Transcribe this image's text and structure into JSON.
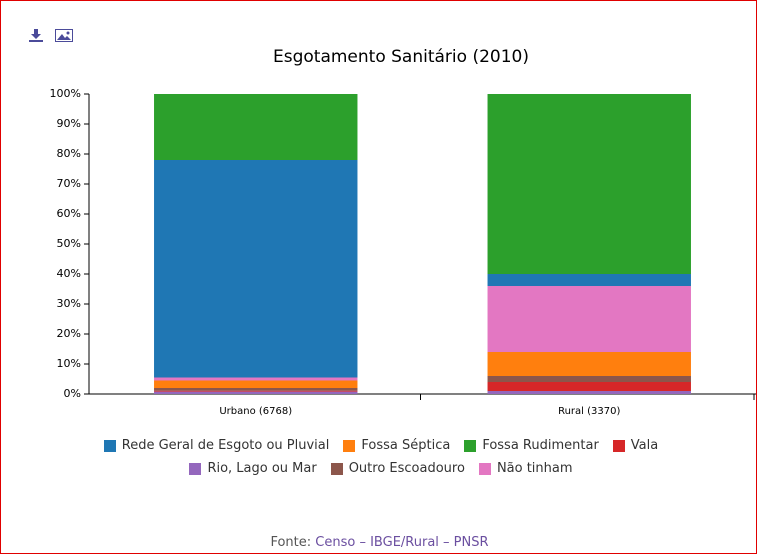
{
  "chart_data": {
    "type": "stacked_bar",
    "title": "Esgotamento Sanitário (2010)",
    "categories": [
      "Urbano (6768)",
      "Rural (3370)"
    ],
    "series": [
      {
        "name": "Rio, Lago ou Mar",
        "color": "#9467bd",
        "values": [
          0.8,
          1
        ]
      },
      {
        "name": "Vala",
        "color": "#d62728",
        "values": [
          0.3,
          3
        ]
      },
      {
        "name": "Outro Escoadouro",
        "color": "#8c564b",
        "values": [
          0.9,
          2
        ]
      },
      {
        "name": "Fossa Séptica",
        "color": "#ff7f0e",
        "values": [
          2.5,
          8
        ]
      },
      {
        "name": "Não tinham",
        "color": "#e377c2",
        "values": [
          1,
          22
        ]
      },
      {
        "name": "Rede Geral de Esgoto ou Pluvial",
        "color": "#1f77b4",
        "values": [
          72.5,
          4
        ]
      },
      {
        "name": "Fossa Rudimentar",
        "color": "#2ca02c",
        "values": [
          22,
          60
        ]
      }
    ],
    "ylim": [
      0,
      100
    ],
    "yticks": [
      {
        "value": 0,
        "label": "0%"
      },
      {
        "value": 10,
        "label": "10%"
      },
      {
        "value": 20,
        "label": "20%"
      },
      {
        "value": 30,
        "label": "30%"
      },
      {
        "value": 40,
        "label": "40%"
      },
      {
        "value": 50,
        "label": "50%"
      },
      {
        "value": 60,
        "label": "60%"
      },
      {
        "value": 70,
        "label": "70%"
      },
      {
        "value": 80,
        "label": "80%"
      },
      {
        "value": 90,
        "label": "90%"
      },
      {
        "value": 100,
        "label": "100%"
      }
    ],
    "grid": false,
    "source_label": "Fonte:",
    "source": "Censo – IBGE/Rural – PNSR"
  }
}
